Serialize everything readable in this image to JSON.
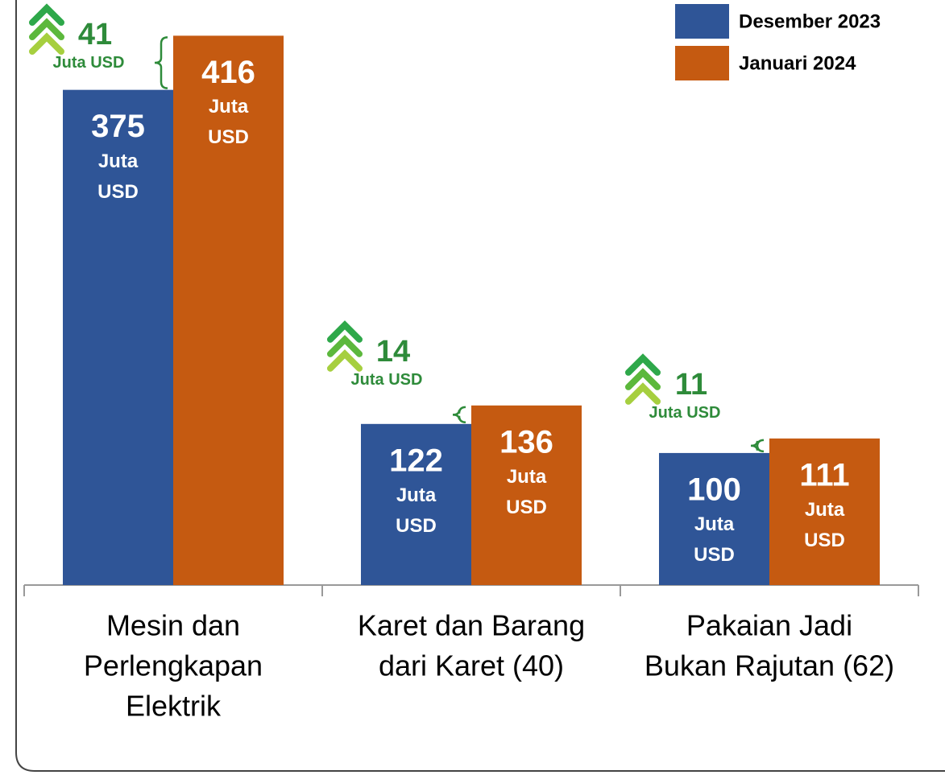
{
  "chart_data": {
    "type": "bar",
    "categories": [
      [
        "Mesin dan",
        "Perlengkapan",
        "Elektrik"
      ],
      [
        "Karet dan Barang",
        "dari Karet (40)"
      ],
      [
        "Pakaian Jadi",
        "Bukan Rajutan (62)"
      ]
    ],
    "series": [
      {
        "name": "Desember 2023",
        "color": "#2f5597",
        "values": [
          375,
          122,
          100
        ]
      },
      {
        "name": "Januari 2024",
        "color": "#c55a11",
        "values": [
          416,
          136,
          111
        ]
      }
    ],
    "unit": "Juta USD",
    "differences": [
      41,
      14,
      11
    ],
    "difference_color": "#2e8b3a",
    "ylim": [
      0,
      440
    ],
    "legend": "top-right"
  }
}
